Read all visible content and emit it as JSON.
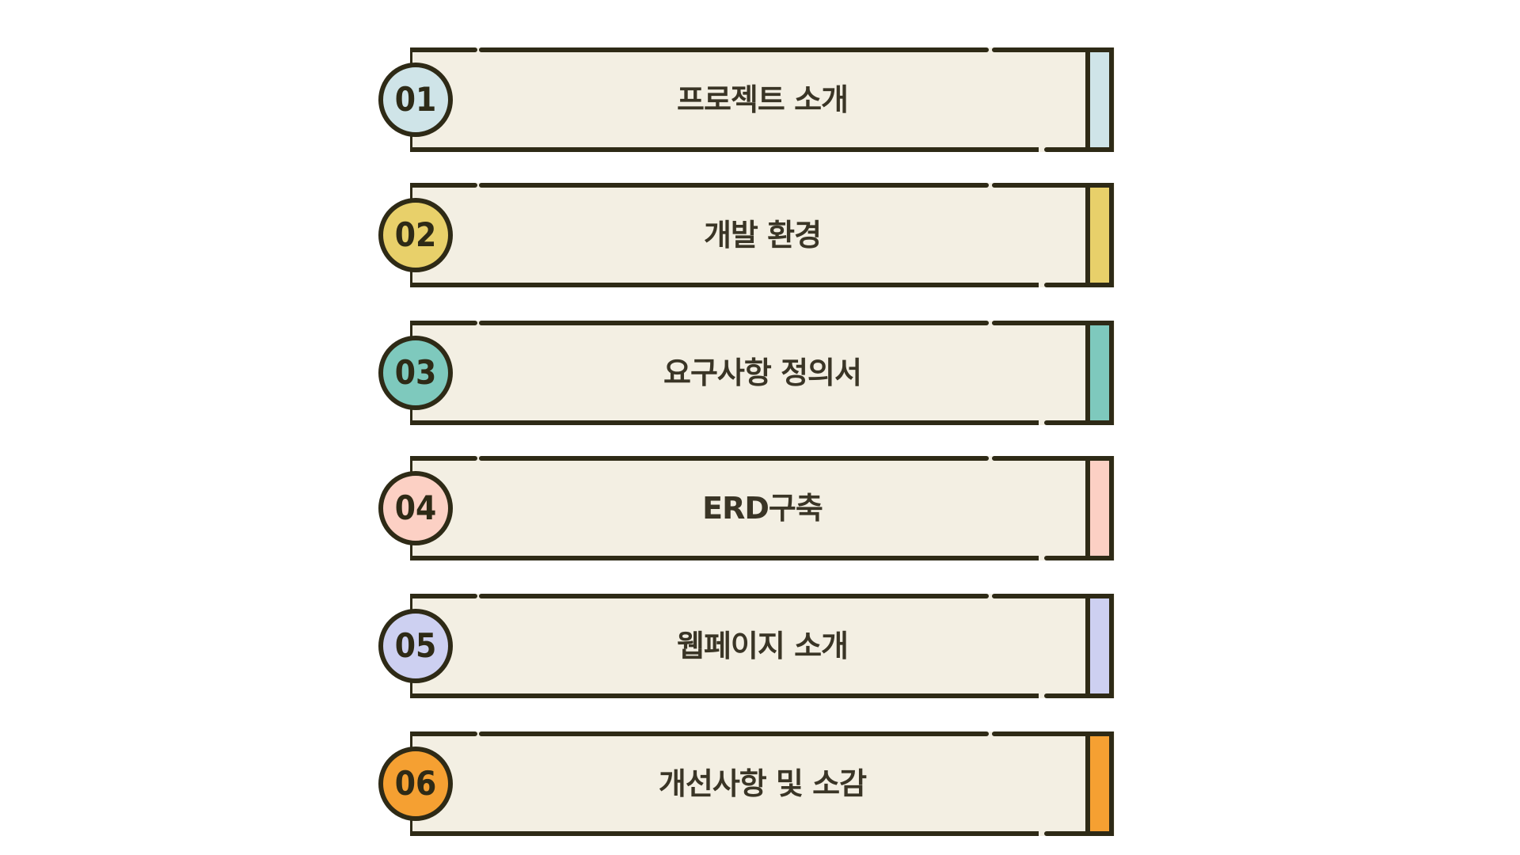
{
  "agenda": {
    "items": [
      {
        "number": "01",
        "title": "프로젝트 소개",
        "accent": "#cfe4e8"
      },
      {
        "number": "02",
        "title": "개발 환경",
        "accent": "#e8d06a"
      },
      {
        "number": "03",
        "title": "요구사항 정의서",
        "accent": "#7ec9bd"
      },
      {
        "number": "04",
        "title": "ERD구축",
        "accent": "#fcd0c4"
      },
      {
        "number": "05",
        "title": "웹페이지 소개",
        "accent": "#cdd0f1"
      },
      {
        "number": "06",
        "title": "개선사항 및 소감",
        "accent": "#f5a032"
      }
    ]
  },
  "colors": {
    "outline": "#2e2a16",
    "card_fill": "#f3efe3",
    "text": "#3a3526"
  }
}
